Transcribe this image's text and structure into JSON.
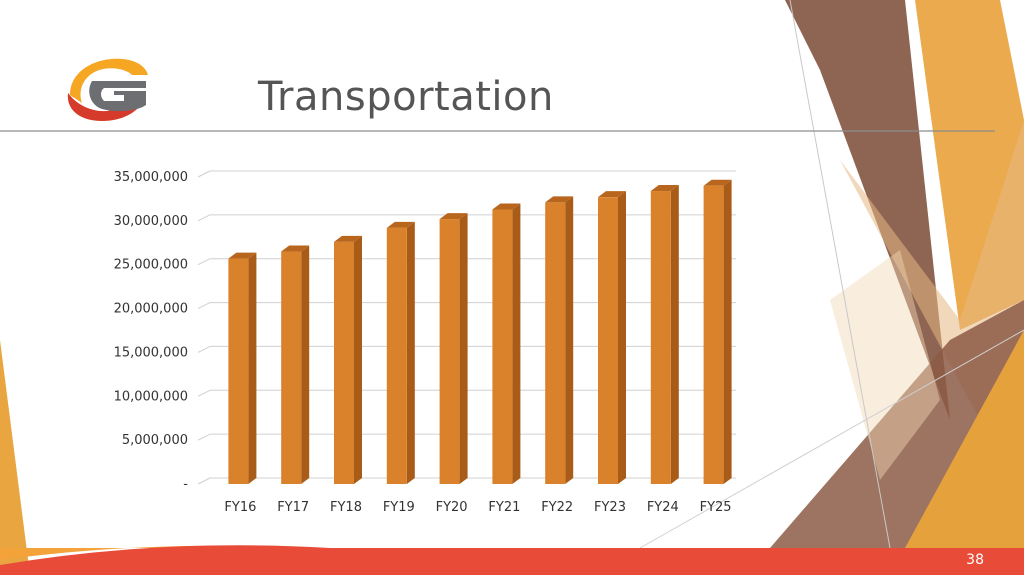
{
  "slide": {
    "title": "Transportation",
    "page_number": "38"
  },
  "colors": {
    "bar_front": "#D9822B",
    "bar_side": "#A85C18",
    "bar_top": "#B8661E",
    "footer_red": "#E84B37",
    "logo_orange": "#F5A623",
    "logo_red": "#D63A2A",
    "logo_gray": "#6D6E71"
  },
  "logo": {
    "letter": "G"
  },
  "chart_data": {
    "type": "bar",
    "categories": [
      "FY16",
      "FY17",
      "FY18",
      "FY19",
      "FY20",
      "FY21",
      "FY22",
      "FY23",
      "FY24",
      "FY25"
    ],
    "values": [
      25700000,
      26500000,
      27600000,
      29200000,
      30200000,
      31300000,
      32100000,
      32700000,
      33400000,
      34000000
    ],
    "title": "",
    "xlabel": "",
    "ylabel": "",
    "ylim": [
      0,
      35000000
    ],
    "yticks": [
      0,
      5000000,
      10000000,
      15000000,
      20000000,
      25000000,
      30000000,
      35000000
    ],
    "ytick_labels": [
      "-",
      "5,000,000",
      "10,000,000",
      "15,000,000",
      "20,000,000",
      "25,000,000",
      "30,000,000",
      "35,000,000"
    ],
    "grid": true,
    "legend": "none"
  }
}
